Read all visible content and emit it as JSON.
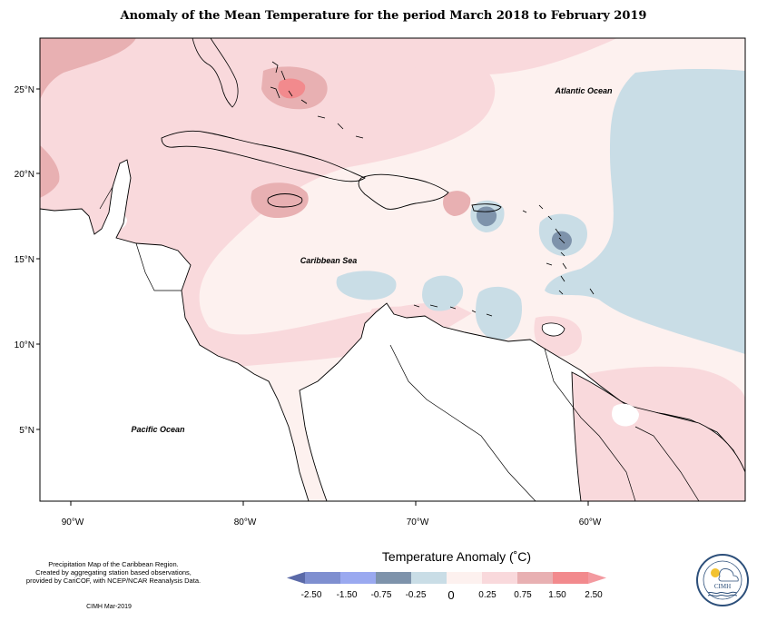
{
  "title": "Anomaly of the Mean Temperature for the period March 2018 to February 2019",
  "latitude_labels": [
    "25°N",
    "20°N",
    "15°N",
    "10°N",
    "5°N"
  ],
  "longitude_labels": [
    "90°W",
    "80°W",
    "70°W",
    "60°W"
  ],
  "ocean_labels": {
    "atlantic": "Atlantic Ocean",
    "caribbean": "Caribbean Sea",
    "pacific": "Pacific Ocean"
  },
  "note_lines": [
    "Precipitation Map of the Caribbean Region.",
    "Created by aggregating station based observations,",
    "provided by CariCOF, with NCEP/NCAR Reanalysis Data."
  ],
  "credit": "CIMH Mar-2019",
  "legend": {
    "title": "Temperature Anomaly (˚C)",
    "ticks": [
      "-2.50",
      "-1.50",
      "-0.75",
      "-0.25",
      "0",
      "0.25",
      "0.75",
      "1.50",
      "2.50"
    ],
    "colors": [
      "#5b6aa8",
      "#7f8fd0",
      "#9aa9f0",
      "#7e93ab",
      "#c9dde6",
      "#fdf1ef",
      "#f9d9dc",
      "#e8b0b2",
      "#f28a8d",
      "#f39aa0"
    ]
  },
  "logo": {
    "text": "CIMH",
    "ring_text": "Caribbean Institute for Meteorology and Hydrology"
  }
}
